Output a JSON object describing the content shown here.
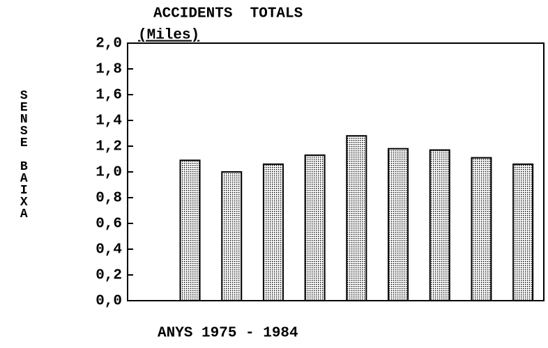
{
  "chart_data": {
    "type": "bar",
    "title": "ACCIDENTS  TOTALS",
    "subtitle": "(Miles)",
    "y_label": "SENSE BAIXA",
    "x_label": "ANYS 1975 - 1984",
    "values": [
      null,
      1.09,
      1.0,
      1.06,
      1.13,
      1.28,
      1.18,
      1.17,
      1.11,
      1.06
    ],
    "color": "#000000",
    "ylim": [
      0,
      2
    ],
    "yticks": [
      {
        "value": 0,
        "label": "0,0"
      },
      {
        "value": 0.2,
        "label": "0,2"
      },
      {
        "value": 0.4,
        "label": "0,4"
      },
      {
        "value": 0.6,
        "label": "0,6"
      },
      {
        "value": 0.8,
        "label": "0,8"
      },
      {
        "value": 1,
        "label": "1,0"
      },
      {
        "value": 1.2,
        "label": "1,2"
      },
      {
        "value": 1.4,
        "label": "1,4"
      },
      {
        "value": 1.6,
        "label": "1,6"
      },
      {
        "value": 1.8,
        "label": "1,8"
      },
      {
        "value": 2,
        "label": "2,0"
      }
    ],
    "grid": false
  }
}
